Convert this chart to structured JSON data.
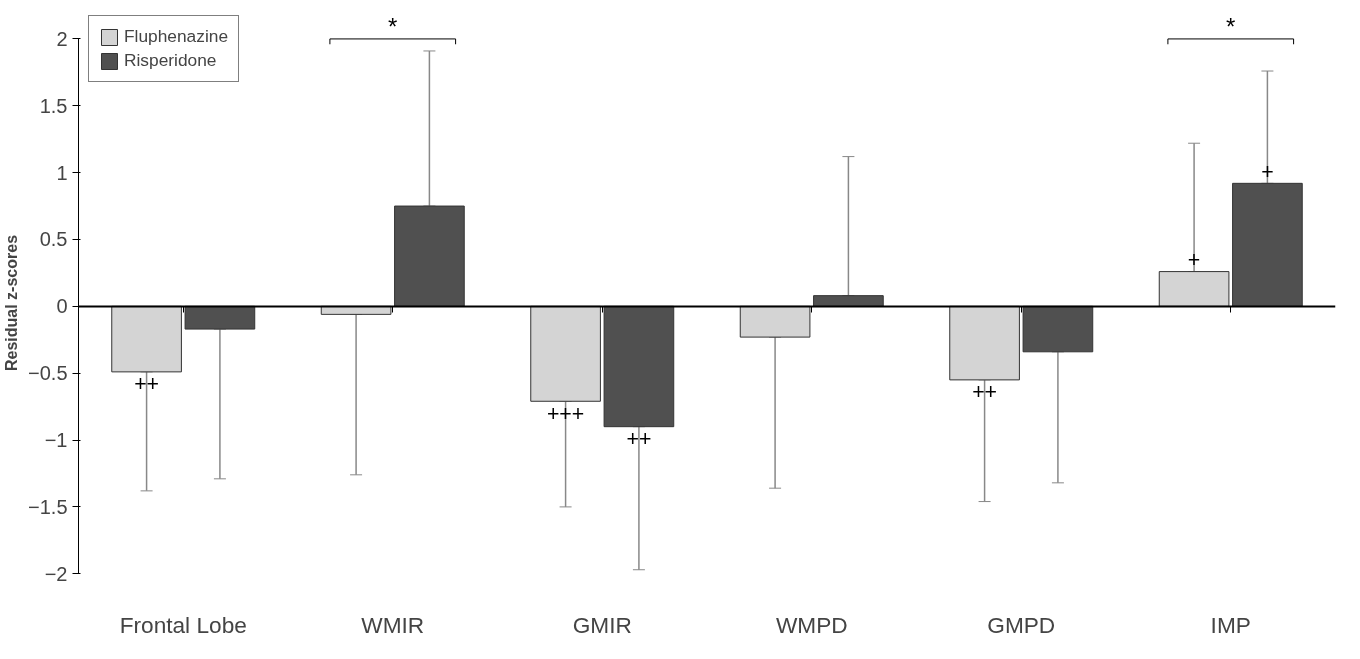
{
  "chart_data": {
    "type": "bar",
    "ylabel": "Residual z-scores",
    "categories": [
      "Frontal Lobe",
      "WMIR",
      "GMIR",
      "WMPD",
      "GMPD",
      "IMP"
    ],
    "series": [
      {
        "name": "Fluphenazine",
        "color": "#d4d4d4",
        "values": [
          -0.49,
          -0.06,
          -0.71,
          -0.23,
          -0.55,
          0.26
        ],
        "value_labels": [
          "++",
          null,
          "+++",
          null,
          "++",
          "+"
        ],
        "errors": [
          [
            -1.38,
            -0.49
          ],
          [
            -1.26,
            -0.06
          ],
          [
            -1.5,
            -0.71
          ],
          [
            -1.36,
            -0.23
          ],
          [
            -1.46,
            -0.55
          ],
          [
            0.26,
            1.22
          ]
        ]
      },
      {
        "name": "Risperidone",
        "color": "#505050",
        "values": [
          -0.17,
          0.75,
          -0.9,
          0.08,
          -0.34,
          0.92
        ],
        "value_labels": [
          null,
          null,
          "++",
          null,
          null,
          "+"
        ],
        "errors": [
          [
            -1.29,
            -0.17
          ],
          [
            0.75,
            1.91
          ],
          [
            -1.97,
            -0.9
          ],
          [
            0.08,
            1.12
          ],
          [
            -1.32,
            -0.34
          ],
          [
            0.92,
            1.76
          ]
        ]
      }
    ],
    "ylim": [
      -2,
      2
    ],
    "yticks": [
      -2,
      -1.5,
      -1,
      -0.5,
      0,
      0.5,
      1,
      1.5,
      2
    ],
    "legend": "top left",
    "annotations": [
      "*",
      "*"
    ]
  }
}
